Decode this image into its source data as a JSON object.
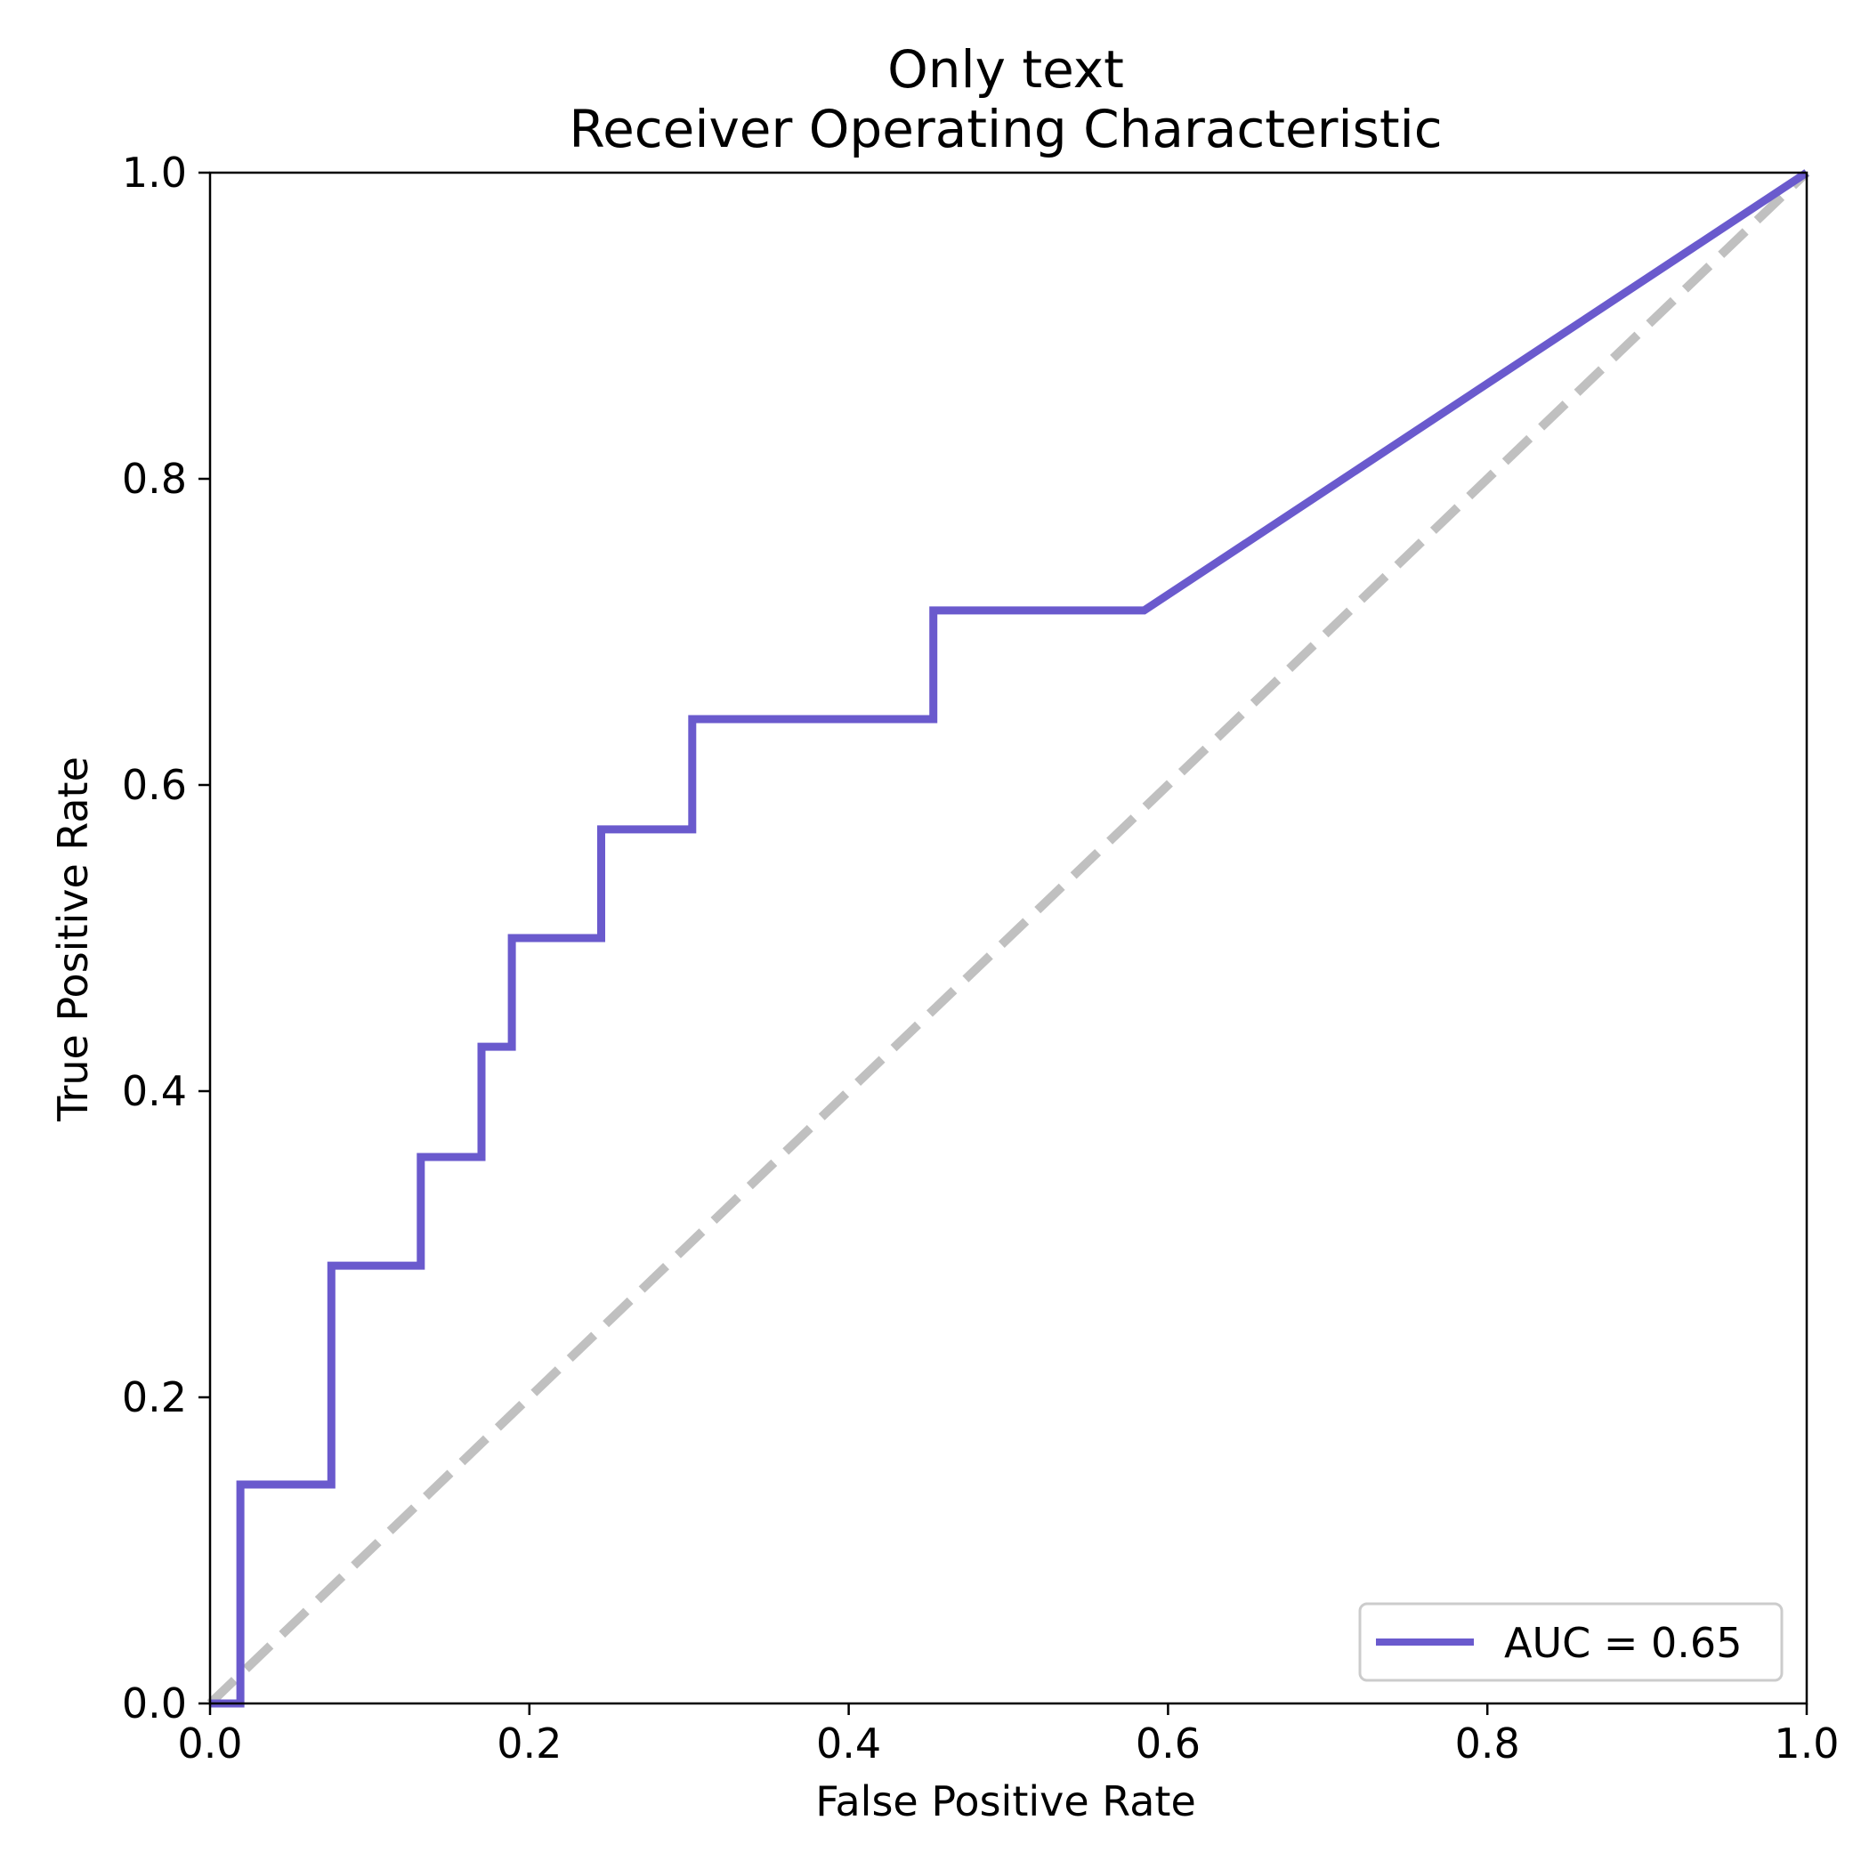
{
  "chart_data": {
    "type": "line",
    "title_line1": "Only text",
    "title_line2": "Receiver Operating Characteristic",
    "xlabel": "False Positive Rate",
    "ylabel": "True Positive Rate",
    "xlim": [
      0,
      1
    ],
    "ylim": [
      0,
      1
    ],
    "xticks": [
      "0.0",
      "0.2",
      "0.4",
      "0.6",
      "0.8",
      "1.0"
    ],
    "yticks": [
      "0.0",
      "0.2",
      "0.4",
      "0.6",
      "0.8",
      "1.0"
    ],
    "grid": false,
    "legend_position": "lower-right",
    "series": [
      {
        "name": "AUC = 0.65",
        "color": "#6a5acd",
        "x": [
          0.0,
          0.019,
          0.019,
          0.019,
          0.076,
          0.076,
          0.132,
          0.132,
          0.17,
          0.17,
          0.189,
          0.189,
          0.245,
          0.245,
          0.302,
          0.302,
          0.453,
          0.453,
          0.585,
          1.0
        ],
        "y": [
          0.0,
          0.0,
          0.071,
          0.143,
          0.143,
          0.286,
          0.286,
          0.357,
          0.357,
          0.429,
          0.429,
          0.5,
          0.5,
          0.571,
          0.571,
          0.643,
          0.643,
          0.714,
          0.714,
          1.0
        ]
      }
    ],
    "reference_line": {
      "x": [
        0,
        1
      ],
      "y": [
        0,
        1
      ],
      "color": "#c0c0c0",
      "style": "dashed"
    }
  }
}
